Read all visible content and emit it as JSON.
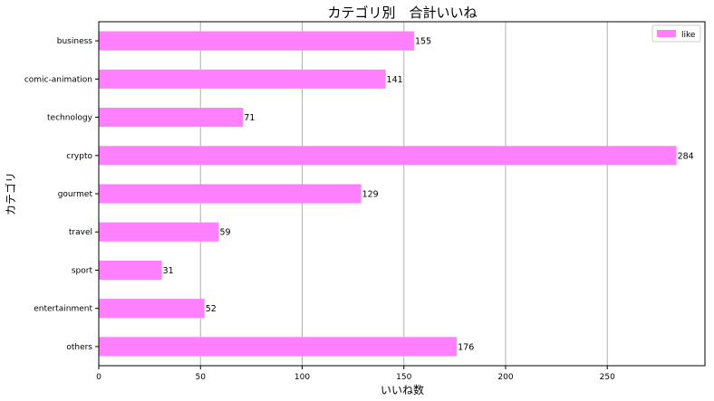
{
  "chart_data": {
    "type": "bar",
    "orientation": "horizontal",
    "title": "カテゴリ別　合計いいね",
    "xlabel": "いいね数",
    "ylabel": "カテゴリ",
    "categories": [
      "business",
      "comic-animation",
      "technology",
      "crypto",
      "gourmet",
      "travel",
      "sport",
      "entertainment",
      "others"
    ],
    "series": [
      {
        "name": "like",
        "values": [
          155,
          141,
          71,
          284,
          129,
          59,
          31,
          52,
          176
        ],
        "color": "#ff80ff"
      }
    ],
    "xlim": [
      0,
      298
    ],
    "xticks": [
      0,
      50,
      100,
      150,
      200,
      250
    ],
    "grid": "vertical",
    "legend_position": "top-right",
    "data_labels": true
  }
}
